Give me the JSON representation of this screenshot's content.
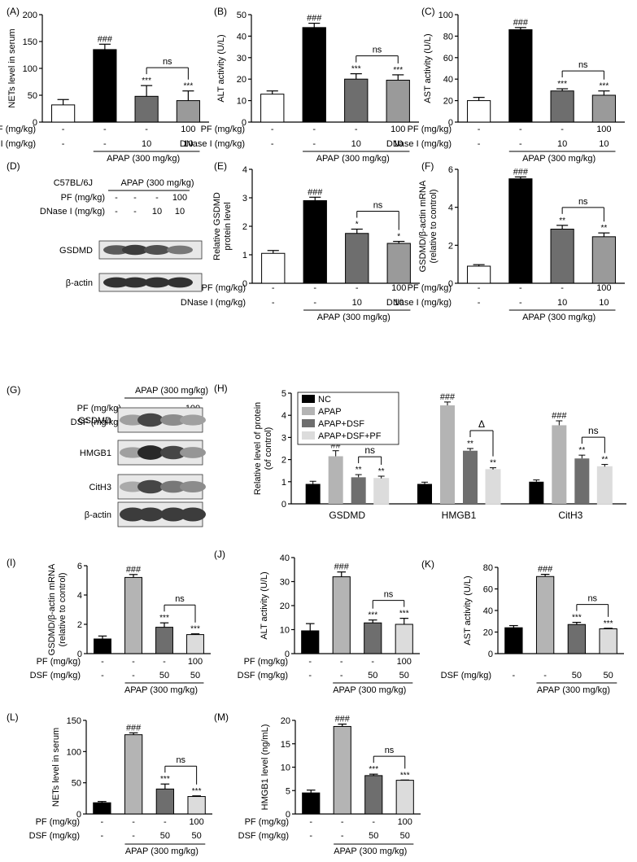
{
  "apap_label": "APAP (300 mg/kg)",
  "colors": {
    "NC": "#000000",
    "APAP": "#b4b4b4",
    "APAP+DSF": "#6e6e6e",
    "APAP+DSF+PF": "#dcdcdc",
    "PF_group": "#9a9a9a",
    "white": "#ffffff"
  },
  "row_labels": {
    "pf": "PF (mg/kg)",
    "dnase": "DNase I (mg/kg)",
    "dsf": "DSF (mg/kg)"
  },
  "blots": {
    "D": {
      "letter": "(D)",
      "strain": "C57BL/6J",
      "apap": "APAP (300 mg/kg)",
      "treat_rows": [
        {
          "label": "PF (mg/kg)",
          "vals": [
            "-",
            "-",
            "-",
            "100"
          ]
        },
        {
          "label": "DNase I (mg/kg)",
          "vals": [
            "-",
            "-",
            "10",
            "10"
          ]
        }
      ],
      "bands": [
        "GSDMD",
        "β-actin"
      ]
    },
    "G": {
      "letter": "(G)",
      "apap": "APAP (300 mg/kg)",
      "treat_rows": [
        {
          "label": "PF (mg/kg)",
          "vals": [
            "-",
            "-",
            "-",
            "100"
          ]
        },
        {
          "label": "DSF (mg/kg)",
          "vals": [
            "-",
            "-",
            "50",
            "50"
          ]
        }
      ],
      "bands": [
        "GSDMD",
        "HMGB1",
        "CitH3",
        "β-actin"
      ]
    }
  },
  "chart_data": [
    {
      "id": "A",
      "letter": "(A)",
      "type": "bar",
      "ylabel": "NETs level in serum",
      "ylim": [
        0,
        200
      ],
      "yticks": [
        0,
        50,
        100,
        150,
        200
      ],
      "values": [
        32,
        135,
        48,
        40
      ],
      "errors": [
        10,
        10,
        20,
        18
      ],
      "sig": [
        "",
        "###",
        "***",
        "***"
      ],
      "ns": "ns",
      "rows": [
        {
          "label": "PF (mg/kg)",
          "vals": [
            "-",
            "-",
            "-",
            "100"
          ]
        },
        {
          "label": "DNase I (mg/kg)",
          "vals": [
            "-",
            "-",
            "10",
            "10"
          ]
        }
      ],
      "apap": "APAP (300 mg/kg)",
      "scheme": "A"
    },
    {
      "id": "B",
      "letter": "(B)",
      "type": "bar",
      "ylabel": "ALT activity (U/L)",
      "ylim": [
        0,
        50
      ],
      "yticks": [
        0,
        10,
        20,
        30,
        40,
        50
      ],
      "values": [
        13,
        44,
        20,
        19.5
      ],
      "errors": [
        1.5,
        2,
        2.5,
        2.5
      ],
      "sig": [
        "",
        "###",
        "***",
        "***"
      ],
      "ns": "ns",
      "rows": [
        {
          "label": "PF (mg/kg)",
          "vals": [
            "-",
            "-",
            "-",
            "100"
          ]
        },
        {
          "label": "DNase I (mg/kg)",
          "vals": [
            "-",
            "-",
            "10",
            "10"
          ]
        }
      ],
      "apap": "APAP (300 mg/kg)",
      "scheme": "A"
    },
    {
      "id": "C",
      "letter": "(C)",
      "type": "bar",
      "ylabel": "AST activity (U/L)",
      "ylim": [
        0,
        100
      ],
      "yticks": [
        0,
        20,
        40,
        60,
        80,
        100
      ],
      "values": [
        20,
        86,
        29,
        25
      ],
      "errors": [
        3,
        2,
        2,
        4
      ],
      "sig": [
        "",
        "###",
        "***",
        "***"
      ],
      "ns": "ns",
      "rows": [
        {
          "label": "PF (mg/kg)",
          "vals": [
            "-",
            "-",
            "-",
            "100"
          ]
        },
        {
          "label": "DNase I (mg/kg)",
          "vals": [
            "-",
            "-",
            "10",
            "10"
          ]
        }
      ],
      "apap": "APAP (300 mg/kg)",
      "scheme": "A"
    },
    {
      "id": "E",
      "letter": "(E)",
      "type": "bar",
      "ylabel": "Relative GSDMD protein level",
      "ylim": [
        0,
        4
      ],
      "yticks": [
        0,
        1,
        2,
        3,
        4
      ],
      "values": [
        1.05,
        2.9,
        1.75,
        1.4
      ],
      "errors": [
        0.1,
        0.12,
        0.15,
        0.07
      ],
      "sig": [
        "",
        "###",
        "*",
        "*"
      ],
      "ns": "ns",
      "rows": [
        {
          "label": "PF (mg/kg)",
          "vals": [
            "-",
            "-",
            "-",
            "100"
          ]
        },
        {
          "label": "DNase I (mg/kg)",
          "vals": [
            "-",
            "-",
            "10",
            "10"
          ]
        }
      ],
      "apap": "APAP (300 mg/kg)",
      "scheme": "A"
    },
    {
      "id": "F",
      "letter": "(F)",
      "type": "bar",
      "ylabel": "GSDMD/β-actin mRNA (relative to control)",
      "ylim": [
        0,
        6
      ],
      "yticks": [
        0,
        2,
        4,
        6
      ],
      "values": [
        0.9,
        5.5,
        2.85,
        2.45
      ],
      "errors": [
        0.08,
        0.1,
        0.2,
        0.2
      ],
      "sig": [
        "",
        "###",
        "**",
        "**"
      ],
      "ns": "ns",
      "rows": [
        {
          "label": "PF (mg/kg)",
          "vals": [
            "-",
            "-",
            "-",
            "100"
          ]
        },
        {
          "label": "DNase I (mg/kg)",
          "vals": [
            "-",
            "-",
            "10",
            "10"
          ]
        }
      ],
      "apap": "APAP (300 mg/kg)",
      "scheme": "A"
    },
    {
      "id": "H",
      "letter": "(H)",
      "type": "grouped-bar",
      "ylabel": "Relative level of protein (of control)",
      "ylim": [
        0,
        5
      ],
      "yticks": [
        0,
        1,
        2,
        3,
        4,
        5
      ],
      "categories": [
        "GSDMD",
        "HMGB1",
        "CitH3"
      ],
      "series": [
        {
          "name": "NC",
          "values": [
            0.9,
            0.9,
            1.0
          ],
          "errors": [
            0.12,
            0.08,
            0.08
          ]
        },
        {
          "name": "APAP",
          "values": [
            2.15,
            4.45,
            3.55
          ],
          "errors": [
            0.25,
            0.15,
            0.2
          ]
        },
        {
          "name": "APAP+DSF",
          "values": [
            1.2,
            2.4,
            2.05
          ],
          "errors": [
            0.12,
            0.1,
            0.15
          ]
        },
        {
          "name": "APAP+DSF+PF",
          "values": [
            1.15,
            1.55,
            1.68
          ],
          "errors": [
            0.1,
            0.08,
            0.1
          ]
        }
      ],
      "sig": [
        [
          "",
          "##",
          "**",
          "**"
        ],
        [
          "",
          "###",
          "**",
          "**"
        ],
        [
          "",
          "###",
          "**",
          "**"
        ]
      ],
      "brackets": [
        "ns",
        "Δ",
        "ns"
      ]
    },
    {
      "id": "I",
      "letter": "(I)",
      "type": "bar",
      "ylabel": "GSDMD/β-actin mRNA (relative to control)",
      "ylim": [
        0,
        6
      ],
      "yticks": [
        0,
        2,
        4,
        6
      ],
      "values": [
        1.0,
        5.2,
        1.8,
        1.3
      ],
      "errors": [
        0.2,
        0.2,
        0.3,
        0.05
      ],
      "sig": [
        "",
        "###",
        "***",
        "***"
      ],
      "ns": "ns",
      "rows": [
        {
          "label": "PF (mg/kg)",
          "vals": [
            "-",
            "-",
            "-",
            "100"
          ]
        },
        {
          "label": "DSF (mg/kg)",
          "vals": [
            "-",
            "-",
            "50",
            "50"
          ]
        }
      ],
      "apap": "APAP (300 mg/kg)",
      "scheme": "B"
    },
    {
      "id": "J",
      "letter": "(J)",
      "type": "bar",
      "ylabel": "ALT activity (U/L)",
      "ylim": [
        0,
        40
      ],
      "yticks": [
        0,
        10,
        20,
        30,
        40
      ],
      "values": [
        9.5,
        32,
        12.8,
        12.2
      ],
      "errors": [
        3,
        2,
        1.2,
        2.5
      ],
      "sig": [
        "",
        "###",
        "***",
        "***"
      ],
      "ns": "ns",
      "rows": [
        {
          "label": "PF (mg/kg)",
          "vals": [
            "-",
            "-",
            "-",
            "100"
          ]
        },
        {
          "label": "DSF (mg/kg)",
          "vals": [
            "-",
            "-",
            "50",
            "50"
          ]
        }
      ],
      "apap": "APAP (300 mg/kg)",
      "scheme": "B"
    },
    {
      "id": "K",
      "letter": "(K)",
      "type": "bar",
      "ylabel": "AST activity (U/L)",
      "ylim": [
        0,
        80
      ],
      "yticks": [
        0,
        20,
        40,
        60,
        80
      ],
      "values": [
        24,
        71.5,
        27,
        23
      ],
      "errors": [
        2,
        2,
        2,
        0.5
      ],
      "sig": [
        "",
        "###",
        "***",
        "***"
      ],
      "ns": "ns",
      "rows": [
        {
          "label": "DSF (mg/kg)",
          "vals": [
            "-",
            "-",
            "50",
            "50"
          ]
        }
      ],
      "apap": "APAP (300 mg/kg)",
      "scheme": "B"
    },
    {
      "id": "L",
      "letter": "(L)",
      "type": "bar",
      "ylabel": "NETs level in serum",
      "ylim": [
        0,
        150
      ],
      "yticks": [
        0,
        50,
        100,
        150
      ],
      "values": [
        18,
        127,
        40,
        28
      ],
      "errors": [
        2,
        3,
        8,
        1
      ],
      "sig": [
        "",
        "###",
        "***",
        "***"
      ],
      "ns": "ns",
      "rows": [
        {
          "label": "PF (mg/kg)",
          "vals": [
            "-",
            "-",
            "-",
            "100"
          ]
        },
        {
          "label": "DSF (mg/kg)",
          "vals": [
            "-",
            "-",
            "50",
            "50"
          ]
        }
      ],
      "apap": "APAP (300 mg/kg)",
      "scheme": "B"
    },
    {
      "id": "M",
      "letter": "(M)",
      "type": "bar",
      "ylabel": "HMGB1 level (ng/mL)",
      "ylim": [
        0,
        20
      ],
      "yticks": [
        0,
        5,
        10,
        15,
        20
      ],
      "values": [
        4.5,
        18.7,
        8.2,
        7.2
      ],
      "errors": [
        0.6,
        0.5,
        0.3,
        0.05
      ],
      "sig": [
        "",
        "###",
        "***",
        "***"
      ],
      "ns": "ns",
      "rows": [
        {
          "label": "PF (mg/kg)",
          "vals": [
            "-",
            "-",
            "-",
            "100"
          ]
        },
        {
          "label": "DSF (mg/kg)",
          "vals": [
            "-",
            "-",
            "50",
            "50"
          ]
        }
      ],
      "apap": "APAP (300 mg/kg)",
      "scheme": "B"
    }
  ]
}
